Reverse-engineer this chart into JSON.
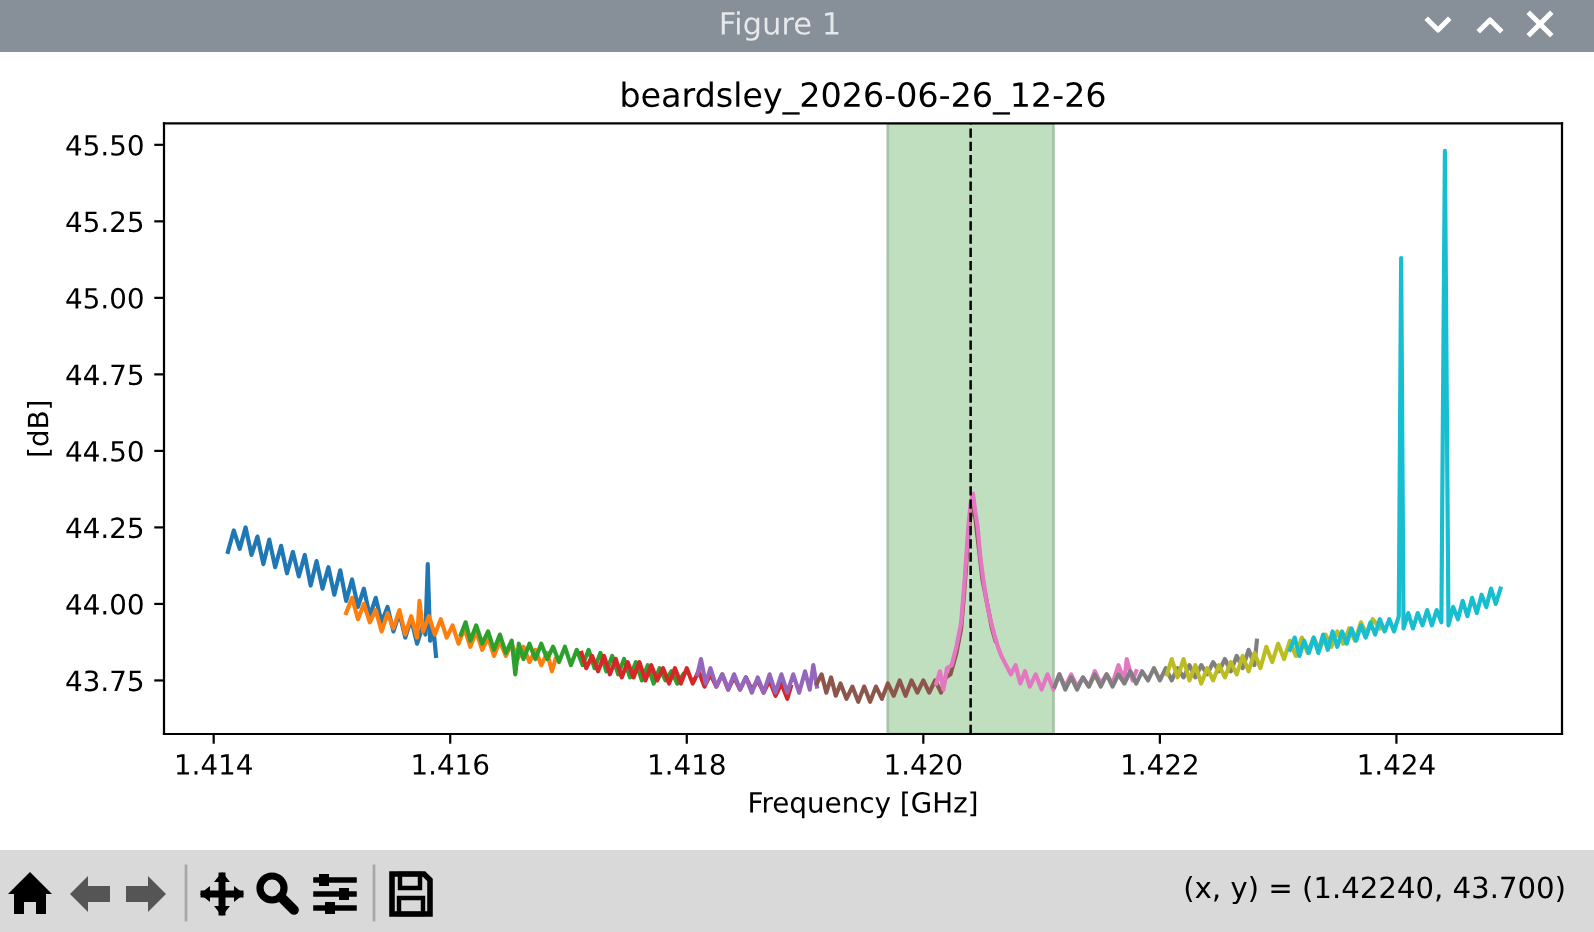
{
  "chart_data": {
    "type": "line",
    "title": "beardsley_2026-06-26_12-26",
    "xlabel": "Frequency [GHz]",
    "ylabel": "[dB]",
    "annotations": [
      "Figure 1",
      "(x, y) = (1.42240, 43.700)"
    ],
    "xlim": [
      1.41358,
      1.4254
    ],
    "ylim": [
      43.575,
      45.57
    ],
    "xticks": [
      1.414,
      1.416,
      1.418,
      {
        "value": 1.42,
        "label": "1.420"
      },
      1.422,
      1.424
    ],
    "yticks": [
      43.75,
      {
        "value": 44.0,
        "label": "44.00"
      },
      44.25,
      {
        "value": 44.5,
        "label": "44.50"
      },
      44.75,
      {
        "value": 45.0,
        "label": "45.00"
      },
      45.25,
      {
        "value": 45.5,
        "label": "45.50"
      }
    ],
    "bands": [
      {
        "axis": "x",
        "from": 1.4197,
        "to": 1.4211,
        "color": "#bfdfbf"
      }
    ],
    "ref_lines": [
      {
        "axis": "x",
        "value": 1.4204,
        "color": "#000000",
        "line_style": "dashed"
      }
    ],
    "series": [
      {
        "color": "#1f77b4",
        "x": [
          1.41412,
          1.41417,
          1.41422,
          1.41427,
          1.41432,
          1.41437,
          1.41442,
          1.41447,
          1.41452,
          1.41457,
          1.41462,
          1.41467,
          1.41472,
          1.41477,
          1.41482,
          1.41487,
          1.41492,
          1.41497,
          1.41502,
          1.41507,
          1.41512,
          1.41517,
          1.41522,
          1.41527,
          1.41532,
          1.41537,
          1.41542,
          1.41547,
          1.41552,
          1.41557,
          1.41562,
          1.41567,
          1.41572,
          1.41577,
          1.41579,
          1.41581,
          1.41583,
          1.41586,
          1.41588
        ],
        "values": [
          44.17,
          44.24,
          44.18,
          44.25,
          44.16,
          44.22,
          44.13,
          44.21,
          44.12,
          44.19,
          44.1,
          44.17,
          44.09,
          44.16,
          44.06,
          44.14,
          44.05,
          44.12,
          44.03,
          44.11,
          44.01,
          44.08,
          43.99,
          44.05,
          43.96,
          44.02,
          43.94,
          43.99,
          43.91,
          43.97,
          43.89,
          43.95,
          43.87,
          43.93,
          43.9,
          44.13,
          43.88,
          43.91,
          43.83
        ]
      },
      {
        "color": "#ff7f0e",
        "x": [
          1.41512,
          1.41517,
          1.41522,
          1.41527,
          1.41532,
          1.41537,
          1.41542,
          1.41547,
          1.41552,
          1.41557,
          1.41562,
          1.41567,
          1.41572,
          1.41574,
          1.41577,
          1.41582,
          1.41587,
          1.41592,
          1.41597,
          1.41602,
          1.41607,
          1.41612,
          1.41617,
          1.41622,
          1.41627,
          1.41632,
          1.41637,
          1.41642,
          1.41647,
          1.41652,
          1.41657,
          1.41662,
          1.41667,
          1.41672,
          1.41677,
          1.41682,
          1.41686,
          1.41689
        ],
        "values": [
          43.97,
          44.02,
          43.95,
          44.0,
          43.94,
          43.98,
          43.91,
          43.97,
          43.92,
          43.98,
          43.9,
          43.96,
          43.89,
          44.01,
          43.91,
          43.96,
          43.9,
          43.95,
          43.89,
          43.93,
          43.87,
          43.92,
          43.86,
          43.91,
          43.85,
          43.89,
          43.83,
          43.88,
          43.83,
          43.87,
          43.82,
          43.86,
          43.81,
          43.85,
          43.8,
          43.84,
          43.78,
          43.82
        ]
      },
      {
        "color": "#2ca02c",
        "x": [
          1.41609,
          1.41613,
          1.41617,
          1.41622,
          1.41627,
          1.41632,
          1.41637,
          1.41642,
          1.41647,
          1.41652,
          1.41655,
          1.41658,
          1.41662,
          1.41667,
          1.41672,
          1.41677,
          1.41682,
          1.41687,
          1.41692,
          1.41697,
          1.41702,
          1.41707,
          1.41712,
          1.41717,
          1.41722,
          1.41727,
          1.41732,
          1.41737,
          1.41742,
          1.41747,
          1.41752,
          1.41757,
          1.41762,
          1.41767,
          1.41772,
          1.41777,
          1.41782,
          1.41787,
          1.41792,
          1.41797
        ],
        "values": [
          43.9,
          43.94,
          43.88,
          43.93,
          43.87,
          43.91,
          43.85,
          43.9,
          43.84,
          43.88,
          43.77,
          43.87,
          43.82,
          43.87,
          43.82,
          43.87,
          43.82,
          43.86,
          43.81,
          43.86,
          43.8,
          43.85,
          43.8,
          43.85,
          43.79,
          43.84,
          43.78,
          43.83,
          43.77,
          43.82,
          43.76,
          43.81,
          43.75,
          43.8,
          43.74,
          43.79,
          43.75,
          43.78,
          43.74,
          43.77
        ]
      },
      {
        "color": "#d62728",
        "x": [
          1.41711,
          1.41715,
          1.4172,
          1.41725,
          1.4173,
          1.41735,
          1.4174,
          1.41745,
          1.4175,
          1.41755,
          1.4176,
          1.41765,
          1.4177,
          1.41775,
          1.4178,
          1.41785,
          1.4179,
          1.41795,
          1.418,
          1.41805,
          1.4181,
          1.41815,
          1.4182,
          1.41825,
          1.4183,
          1.41835,
          1.4184,
          1.41845,
          1.4185,
          1.41855,
          1.4186,
          1.41865,
          1.4187,
          1.41875,
          1.4188,
          1.41885,
          1.41888
        ],
        "values": [
          43.84,
          43.79,
          43.83,
          43.78,
          43.83,
          43.77,
          43.82,
          43.76,
          43.81,
          43.76,
          43.81,
          43.75,
          43.8,
          43.75,
          43.79,
          43.74,
          43.79,
          43.74,
          43.79,
          43.74,
          43.78,
          43.73,
          43.77,
          43.73,
          43.77,
          43.72,
          43.76,
          43.72,
          43.76,
          43.72,
          43.75,
          43.71,
          43.75,
          43.7,
          43.74,
          43.69,
          43.73
        ]
      },
      {
        "color": "#9467bd",
        "x": [
          1.41809,
          1.41812,
          1.41816,
          1.4182,
          1.41825,
          1.4183,
          1.41835,
          1.4184,
          1.41845,
          1.4185,
          1.41855,
          1.4186,
          1.41865,
          1.4187,
          1.41875,
          1.4188,
          1.41885,
          1.4189,
          1.41895,
          1.419,
          1.41904,
          1.41907,
          1.4191
        ],
        "values": [
          43.77,
          43.82,
          43.74,
          43.79,
          43.73,
          43.77,
          43.72,
          43.77,
          43.72,
          43.76,
          43.71,
          43.76,
          43.71,
          43.77,
          43.71,
          43.77,
          43.71,
          43.77,
          43.71,
          43.78,
          43.72,
          43.8,
          43.73
        ]
      },
      {
        "color": "#8c564b",
        "x": [
          1.4191,
          1.41914,
          1.41918,
          1.41922,
          1.41926,
          1.4193,
          1.41935,
          1.4194,
          1.41945,
          1.4195,
          1.41955,
          1.4196,
          1.41965,
          1.4197,
          1.41975,
          1.4198,
          1.41985,
          1.4199,
          1.41995,
          1.42,
          1.42005,
          1.4201,
          1.42015,
          1.42019,
          1.42023,
          1.42028,
          1.42032,
          1.42035,
          1.42038,
          1.42041,
          1.42044,
          1.42047,
          1.4205,
          1.42054,
          1.42058,
          1.42061
        ],
        "values": [
          43.74,
          43.77,
          43.71,
          43.76,
          43.7,
          43.74,
          43.69,
          43.73,
          43.68,
          43.73,
          43.68,
          43.73,
          43.69,
          43.74,
          43.7,
          43.75,
          43.7,
          43.75,
          43.71,
          43.75,
          43.71,
          43.75,
          43.71,
          43.76,
          43.77,
          43.84,
          43.92,
          44.06,
          44.22,
          44.33,
          44.28,
          44.18,
          44.08,
          44.0,
          43.92,
          43.88
        ]
      },
      {
        "color": "#e377c2",
        "x": [
          1.42011,
          1.42014,
          1.42017,
          1.4202,
          1.42024,
          1.42028,
          1.42032,
          1.42035,
          1.42038,
          1.4204,
          1.42042,
          1.42044,
          1.42046,
          1.42048,
          1.4205,
          1.42053,
          1.42056,
          1.4206,
          1.42063,
          1.42066,
          1.4207,
          1.42074,
          1.42078,
          1.42082,
          1.42086,
          1.4209,
          1.42095,
          1.421,
          1.42105,
          1.4211,
          1.42115,
          1.4212,
          1.42125,
          1.4213,
          1.42135,
          1.4214,
          1.42145,
          1.4215,
          1.42155,
          1.4216,
          1.42165,
          1.4217,
          1.42172,
          1.42177,
          1.4218
        ],
        "values": [
          43.74,
          43.78,
          43.72,
          43.79,
          43.8,
          43.86,
          43.94,
          44.08,
          44.25,
          44.33,
          44.36,
          44.3,
          44.25,
          44.16,
          44.1,
          44.02,
          43.96,
          43.9,
          43.86,
          43.83,
          43.8,
          43.77,
          43.8,
          43.74,
          43.78,
          43.73,
          43.77,
          43.72,
          43.77,
          43.72,
          43.77,
          43.73,
          43.77,
          43.73,
          43.76,
          43.73,
          43.78,
          43.74,
          43.77,
          43.74,
          43.8,
          43.75,
          43.82,
          43.75,
          43.78
        ]
      },
      {
        "color": "#7f7f7f",
        "x": [
          1.42111,
          1.42115,
          1.4212,
          1.42125,
          1.4213,
          1.42135,
          1.4214,
          1.42145,
          1.4215,
          1.42155,
          1.4216,
          1.42165,
          1.4217,
          1.42175,
          1.4218,
          1.42185,
          1.4219,
          1.42195,
          1.422,
          1.42205,
          1.4221,
          1.42215,
          1.4222,
          1.42225,
          1.4223,
          1.42235,
          1.4224,
          1.42245,
          1.4225,
          1.42255,
          1.4226,
          1.42265,
          1.4227,
          1.42275,
          1.4228,
          1.42282
        ],
        "values": [
          43.73,
          43.77,
          43.72,
          43.76,
          43.72,
          43.76,
          43.73,
          43.77,
          43.73,
          43.77,
          43.73,
          43.77,
          43.74,
          43.78,
          43.74,
          43.78,
          43.75,
          43.79,
          43.75,
          43.79,
          43.75,
          43.79,
          43.76,
          43.8,
          43.76,
          43.8,
          43.77,
          43.81,
          43.78,
          43.82,
          43.78,
          43.83,
          43.79,
          43.85,
          43.8,
          43.88
        ]
      },
      {
        "color": "#bcbd22",
        "x": [
          1.42206,
          1.4221,
          1.42215,
          1.4222,
          1.42225,
          1.4223,
          1.42235,
          1.4224,
          1.42245,
          1.4225,
          1.42255,
          1.4226,
          1.42265,
          1.4227,
          1.42275,
          1.4228,
          1.42285,
          1.4229,
          1.42295,
          1.423,
          1.42305,
          1.4231,
          1.42315,
          1.4232,
          1.42325,
          1.4233,
          1.42335,
          1.4234,
          1.42345,
          1.4235,
          1.42355,
          1.4236,
          1.42365,
          1.4237,
          1.42375,
          1.4238,
          1.42386
        ],
        "values": [
          43.77,
          43.82,
          43.76,
          43.82,
          43.75,
          43.8,
          43.74,
          43.79,
          43.75,
          43.8,
          43.76,
          43.81,
          43.77,
          43.83,
          43.78,
          43.84,
          43.79,
          43.86,
          43.81,
          43.87,
          43.82,
          43.88,
          43.83,
          43.89,
          43.84,
          43.89,
          43.85,
          43.9,
          43.86,
          43.91,
          43.87,
          43.92,
          43.88,
          43.94,
          43.9,
          43.95,
          43.92
        ]
      },
      {
        "color": "#17becf",
        "x": [
          1.4231,
          1.42314,
          1.42318,
          1.42322,
          1.42326,
          1.4233,
          1.42334,
          1.42338,
          1.42342,
          1.42346,
          1.4235,
          1.42354,
          1.42358,
          1.42362,
          1.42366,
          1.4237,
          1.42374,
          1.42378,
          1.42382,
          1.42386,
          1.4239,
          1.42394,
          1.42398,
          1.42402,
          1.42404,
          1.42406,
          1.4241,
          1.42414,
          1.42418,
          1.42422,
          1.42426,
          1.4243,
          1.42434,
          1.42438,
          1.42441,
          1.42444,
          1.42448,
          1.42452,
          1.42456,
          1.4246,
          1.42464,
          1.42468,
          1.42472,
          1.42476,
          1.4248,
          1.42484,
          1.42488
        ],
        "values": [
          43.85,
          43.89,
          43.83,
          43.88,
          43.84,
          43.89,
          43.84,
          43.9,
          43.85,
          43.91,
          43.86,
          43.91,
          43.87,
          43.92,
          43.88,
          43.93,
          43.89,
          43.94,
          43.9,
          43.95,
          43.91,
          43.95,
          43.91,
          43.96,
          45.13,
          43.92,
          43.97,
          43.92,
          43.97,
          43.93,
          43.98,
          43.93,
          43.98,
          43.94,
          45.48,
          43.93,
          43.99,
          43.95,
          44.01,
          43.96,
          44.02,
          43.97,
          44.03,
          43.99,
          44.05,
          44.0,
          44.05
        ]
      }
    ]
  }
}
